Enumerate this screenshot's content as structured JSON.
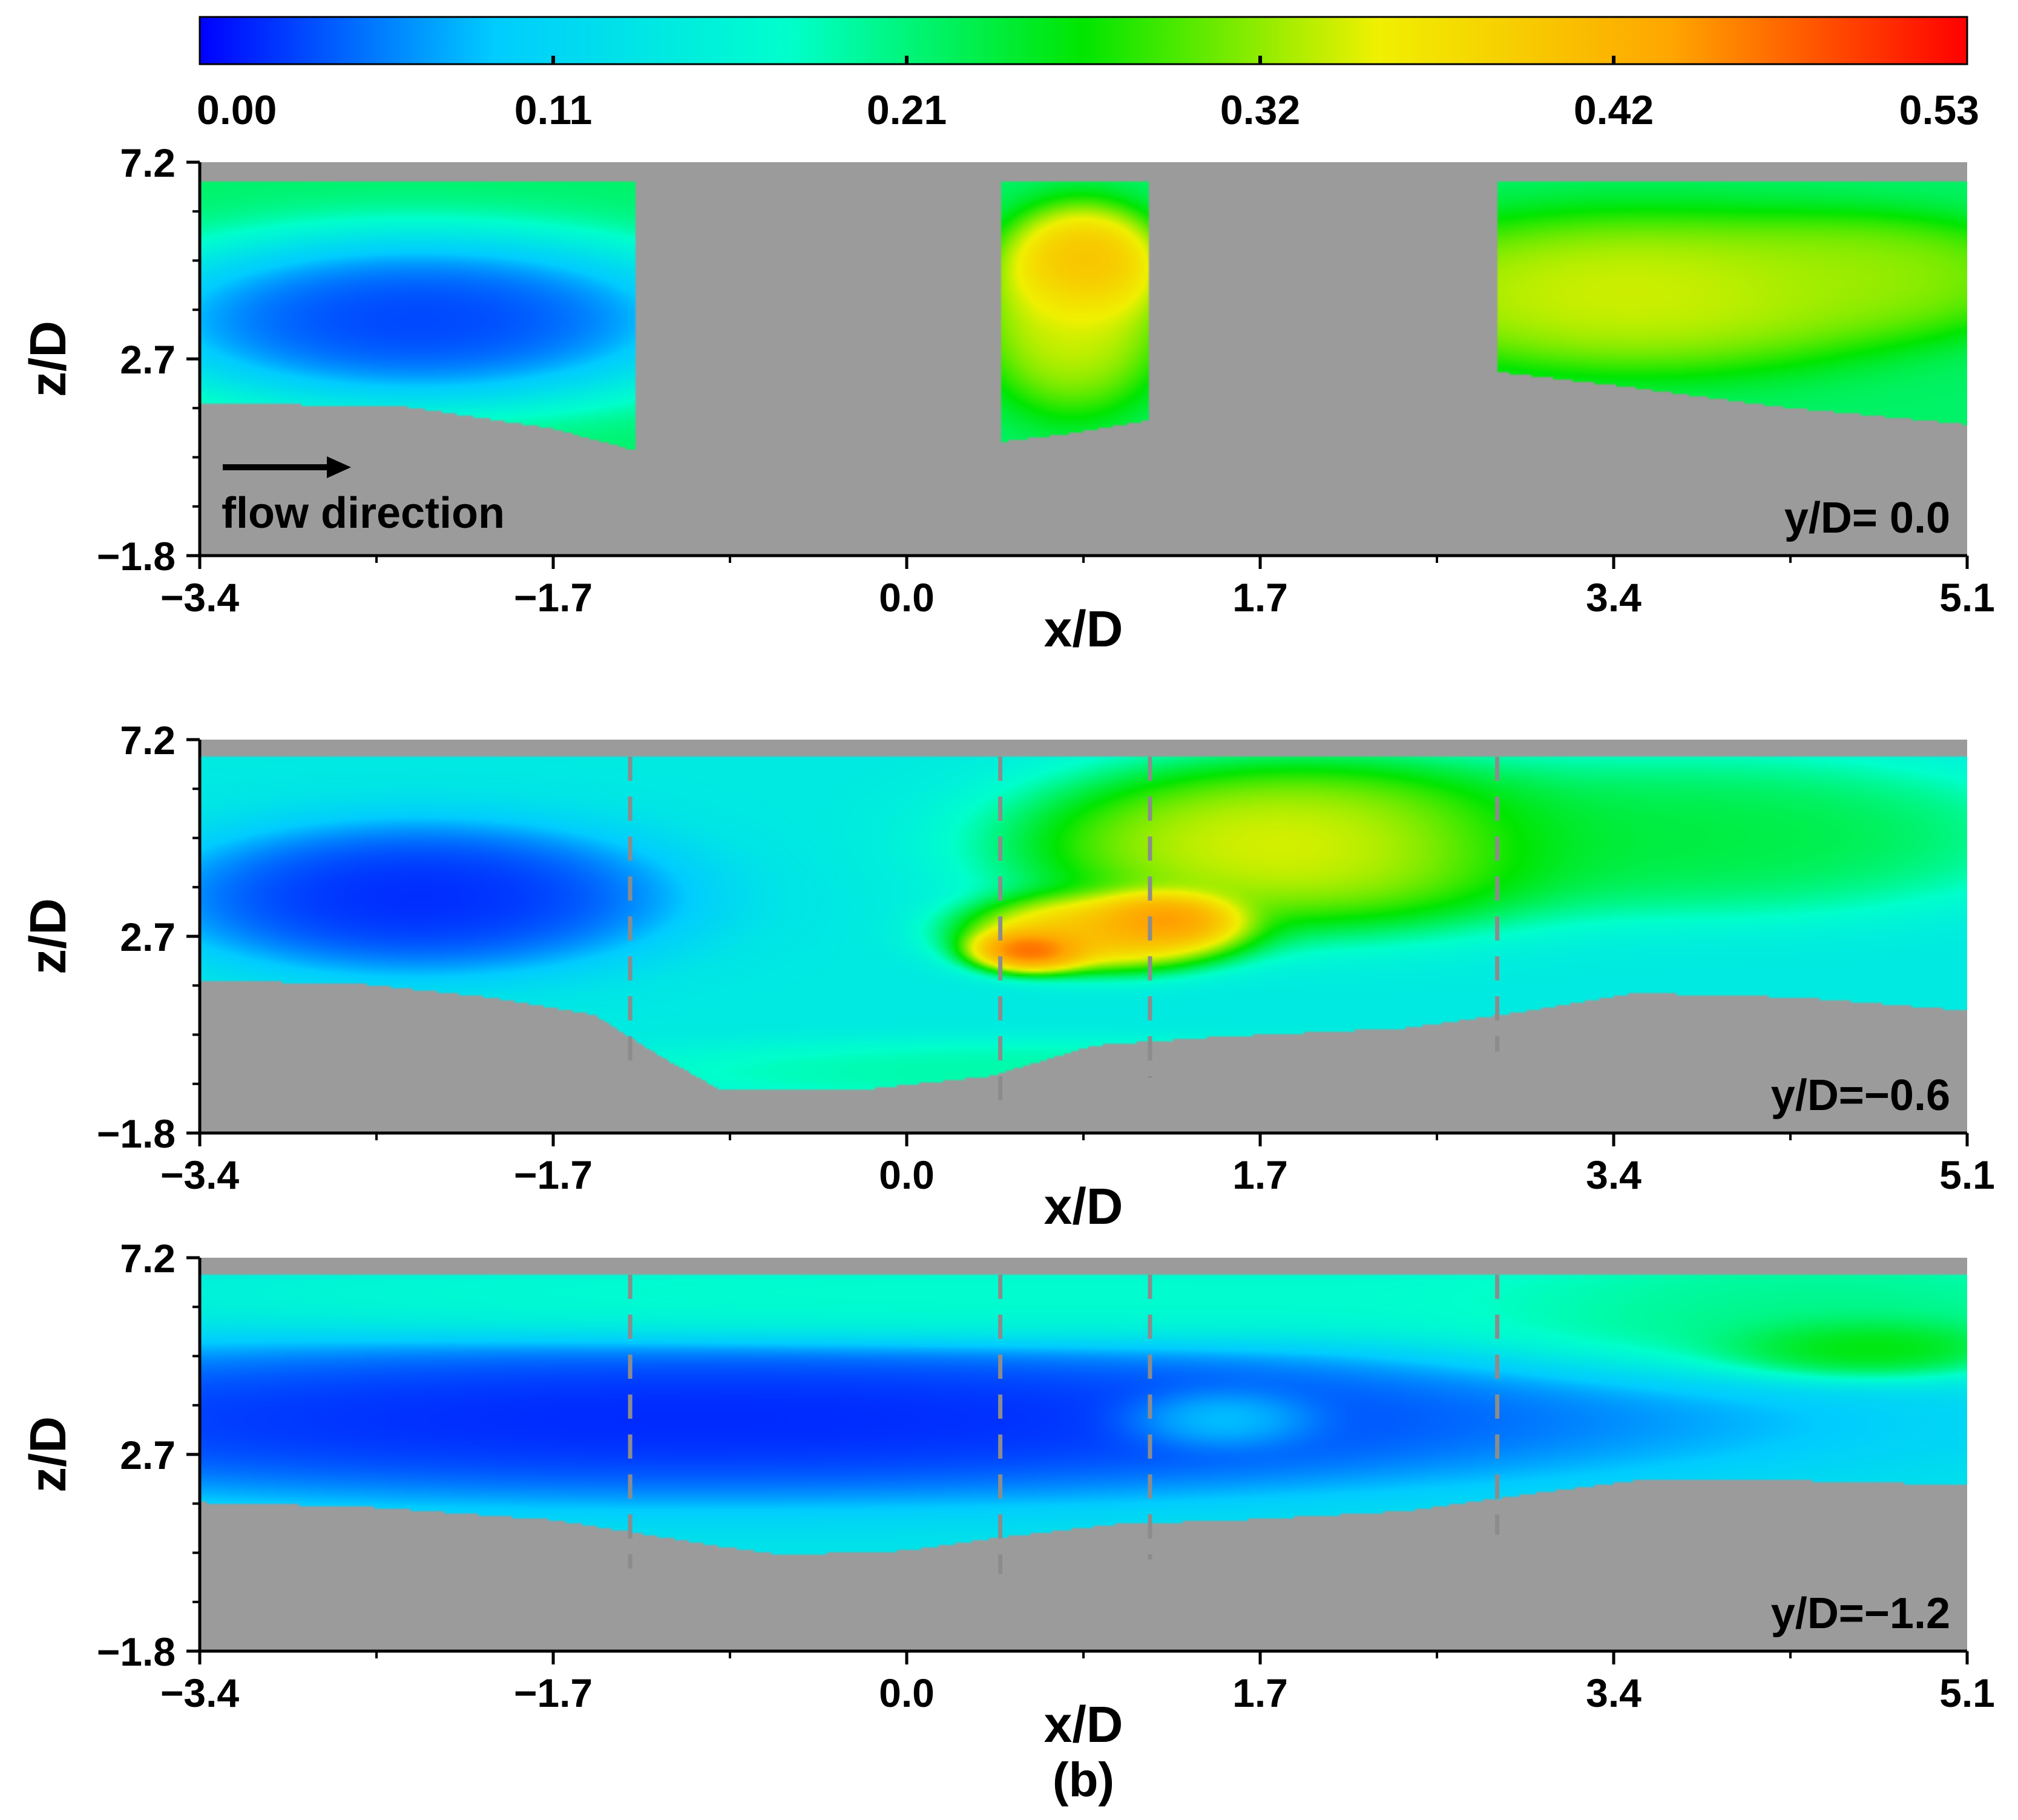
{
  "colorbar": {
    "ticks": [
      "0.00",
      "0.11",
      "0.21",
      "0.32",
      "0.42",
      "0.53"
    ],
    "min": 0.0,
    "max": 0.53,
    "colors": [
      "#0000ff",
      "#00ccff",
      "#00ffcc",
      "#00e600",
      "#f0f000",
      "#ffa500",
      "#ff0000"
    ]
  },
  "colors": {
    "gray_region": "#9b9b9b",
    "dashed": "#8c8c8c",
    "axis": "#000000"
  },
  "axes": {
    "xlabel": "x/D",
    "ylabel": "z/D",
    "x_ticks": [
      "−3.4",
      "−1.7",
      "0.0",
      "1.7",
      "3.4",
      "5.1"
    ],
    "y_ticks": [
      "7.2",
      "2.7",
      "−1.8"
    ],
    "xlim": [
      -3.4,
      5.1
    ],
    "ylim": [
      -1.8,
      7.2
    ]
  },
  "annotations": {
    "flow": "flow direction",
    "caption": "(b)"
  },
  "chart_data": [
    {
      "type": "heatmap",
      "label": "y/D= 0.0",
      "xlabel": "x/D",
      "ylabel": "z/D",
      "xlim": [
        -3.4,
        5.1
      ],
      "ylim": [
        -1.8,
        7.2
      ],
      "windows": [
        [
          -3.4,
          -1.3
        ],
        [
          0.45,
          1.17
        ],
        [
          2.84,
          5.1
        ]
      ],
      "bed": {
        "x": [
          -3.4,
          -2.4,
          -1.7,
          -1.3,
          0.45,
          0.8,
          1.17,
          2.84,
          3.4,
          4.2,
          5.1
        ],
        "z": [
          1.7,
          1.6,
          1.1,
          0.6,
          0.8,
          1.0,
          1.3,
          2.4,
          2.1,
          1.6,
          1.2
        ]
      },
      "hotspots": [
        {
          "x": -2.35,
          "z": 3.6,
          "value": 0.0,
          "sx": 0.95,
          "sz": 1.3
        },
        {
          "x": 0.85,
          "z": 4.8,
          "value": 0.45,
          "sx": 0.25,
          "sz": 0.9
        },
        {
          "x": 0.8,
          "z": 3.6,
          "value": 0.36,
          "sx": 0.3,
          "sz": 1.4
        },
        {
          "x": 3.5,
          "z": 4.2,
          "value": 0.36,
          "sx": 0.9,
          "sz": 1.2
        },
        {
          "x": 4.6,
          "z": 4.6,
          "value": 0.33,
          "sx": 0.6,
          "sz": 0.9
        }
      ],
      "background": 0.22
    },
    {
      "type": "heatmap",
      "label": "y/D=−0.6",
      "xlabel": "x/D",
      "ylabel": "z/D",
      "xlim": [
        -3.4,
        5.1
      ],
      "ylim": [
        -1.8,
        7.2
      ],
      "windows": [
        [
          -3.4,
          5.1
        ]
      ],
      "dashed_x": [
        -1.33,
        0.45,
        1.17,
        2.84
      ],
      "bed": {
        "x": [
          -3.4,
          -2.6,
          -2.0,
          -1.5,
          -1.2,
          -0.9,
          -0.2,
          0.4,
          0.9,
          1.5,
          2.4,
          3.0,
          3.5,
          4.3,
          5.1
        ],
        "z": [
          1.7,
          1.6,
          1.3,
          0.9,
          0.0,
          -0.8,
          -0.8,
          -0.5,
          0.2,
          0.4,
          0.6,
          1.0,
          1.4,
          1.3,
          1.0
        ]
      },
      "hotspots": [
        {
          "x": -2.35,
          "z": 3.6,
          "value": 0.0,
          "sx": 0.85,
          "sz": 1.2
        },
        {
          "x": 0.6,
          "z": 2.4,
          "value": 0.53,
          "sx": 0.2,
          "sz": 0.35
        },
        {
          "x": 1.25,
          "z": 3.1,
          "value": 0.5,
          "sx": 0.25,
          "sz": 0.45
        },
        {
          "x": 0.95,
          "z": 2.8,
          "value": 0.45,
          "sx": 0.45,
          "sz": 0.6
        },
        {
          "x": 1.9,
          "z": 4.8,
          "value": 0.38,
          "sx": 0.9,
          "sz": 1.3
        },
        {
          "x": 3.8,
          "z": 5.0,
          "value": 0.25,
          "sx": 1.1,
          "sz": 1.2
        },
        {
          "x": 0.7,
          "z": -0.4,
          "value": 0.2,
          "sx": 1.4,
          "sz": 0.5
        }
      ],
      "background": 0.14
    },
    {
      "type": "heatmap",
      "label": "y/D=−1.2",
      "xlabel": "x/D",
      "ylabel": "z/D",
      "xlim": [
        -3.4,
        5.1
      ],
      "ylim": [
        -1.8,
        7.2
      ],
      "windows": [
        [
          -3.4,
          5.1
        ]
      ],
      "dashed_x": [
        -1.33,
        0.45,
        1.17,
        2.84
      ],
      "bed": {
        "x": [
          -3.4,
          -2.6,
          -1.7,
          -1.3,
          -0.9,
          -0.6,
          0.0,
          0.45,
          1.0,
          1.6,
          2.4,
          3.0,
          3.5,
          4.3,
          5.1
        ],
        "z": [
          1.6,
          1.5,
          1.2,
          0.9,
          0.6,
          0.4,
          0.5,
          0.8,
          1.1,
          1.2,
          1.4,
          1.8,
          2.1,
          2.1,
          2.0
        ]
      },
      "hotspots": [
        {
          "x": -1.0,
          "z": 3.5,
          "value": 0.0,
          "sx": 3.4,
          "sz": 1.3
        },
        {
          "x": 1.5,
          "z": 3.5,
          "value": 0.12,
          "sx": 0.35,
          "sz": 0.5
        },
        {
          "x": 4.6,
          "z": 5.2,
          "value": 0.3,
          "sx": 0.5,
          "sz": 0.5
        },
        {
          "x": 4.3,
          "z": 6.0,
          "value": 0.22,
          "sx": 1.2,
          "sz": 1.0
        },
        {
          "x": 0.5,
          "z": 6.3,
          "value": 0.18,
          "sx": 3.0,
          "sz": 0.7
        }
      ],
      "background": 0.13
    }
  ]
}
